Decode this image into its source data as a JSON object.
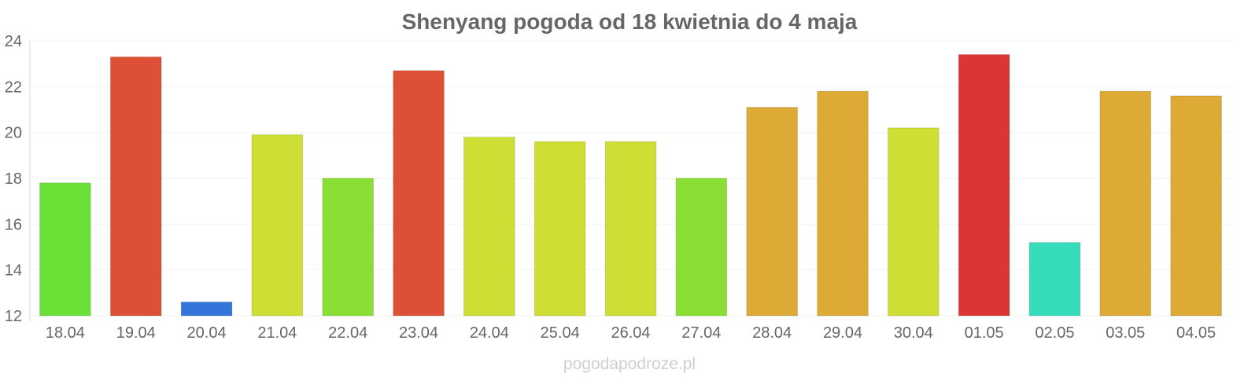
{
  "chart_data": {
    "type": "bar",
    "title": "Shenyang pogoda od 18 kwietnia do 4 maja",
    "xlabel": "",
    "ylabel": "",
    "ylim": [
      12,
      24
    ],
    "yticks": [
      "12",
      "14",
      "16",
      "18",
      "20",
      "22",
      "24"
    ],
    "grid": true,
    "categories": [
      "18.04",
      "19.04",
      "20.04",
      "21.04",
      "22.04",
      "23.04",
      "24.04",
      "25.04",
      "26.04",
      "27.04",
      "28.04",
      "29.04",
      "30.04",
      "01.05",
      "02.05",
      "03.05",
      "04.05"
    ],
    "values": [
      17.8,
      23.3,
      12.6,
      19.9,
      18.0,
      22.7,
      19.8,
      19.6,
      19.6,
      18.0,
      21.1,
      21.8,
      20.2,
      23.4,
      15.2,
      21.8,
      21.6
    ],
    "colors": [
      "#6be036",
      "#de5035",
      "#3475dc",
      "#cede35",
      "#8ade35",
      "#de5035",
      "#cede35",
      "#cede35",
      "#cede35",
      "#8ade35",
      "#dcaa35",
      "#dcaa35",
      "#cede35",
      "#dc3535",
      "#35dcba",
      "#dcaa35",
      "#dcaa35"
    ]
  },
  "footer": {
    "source": "pogodapodroze.pl"
  }
}
